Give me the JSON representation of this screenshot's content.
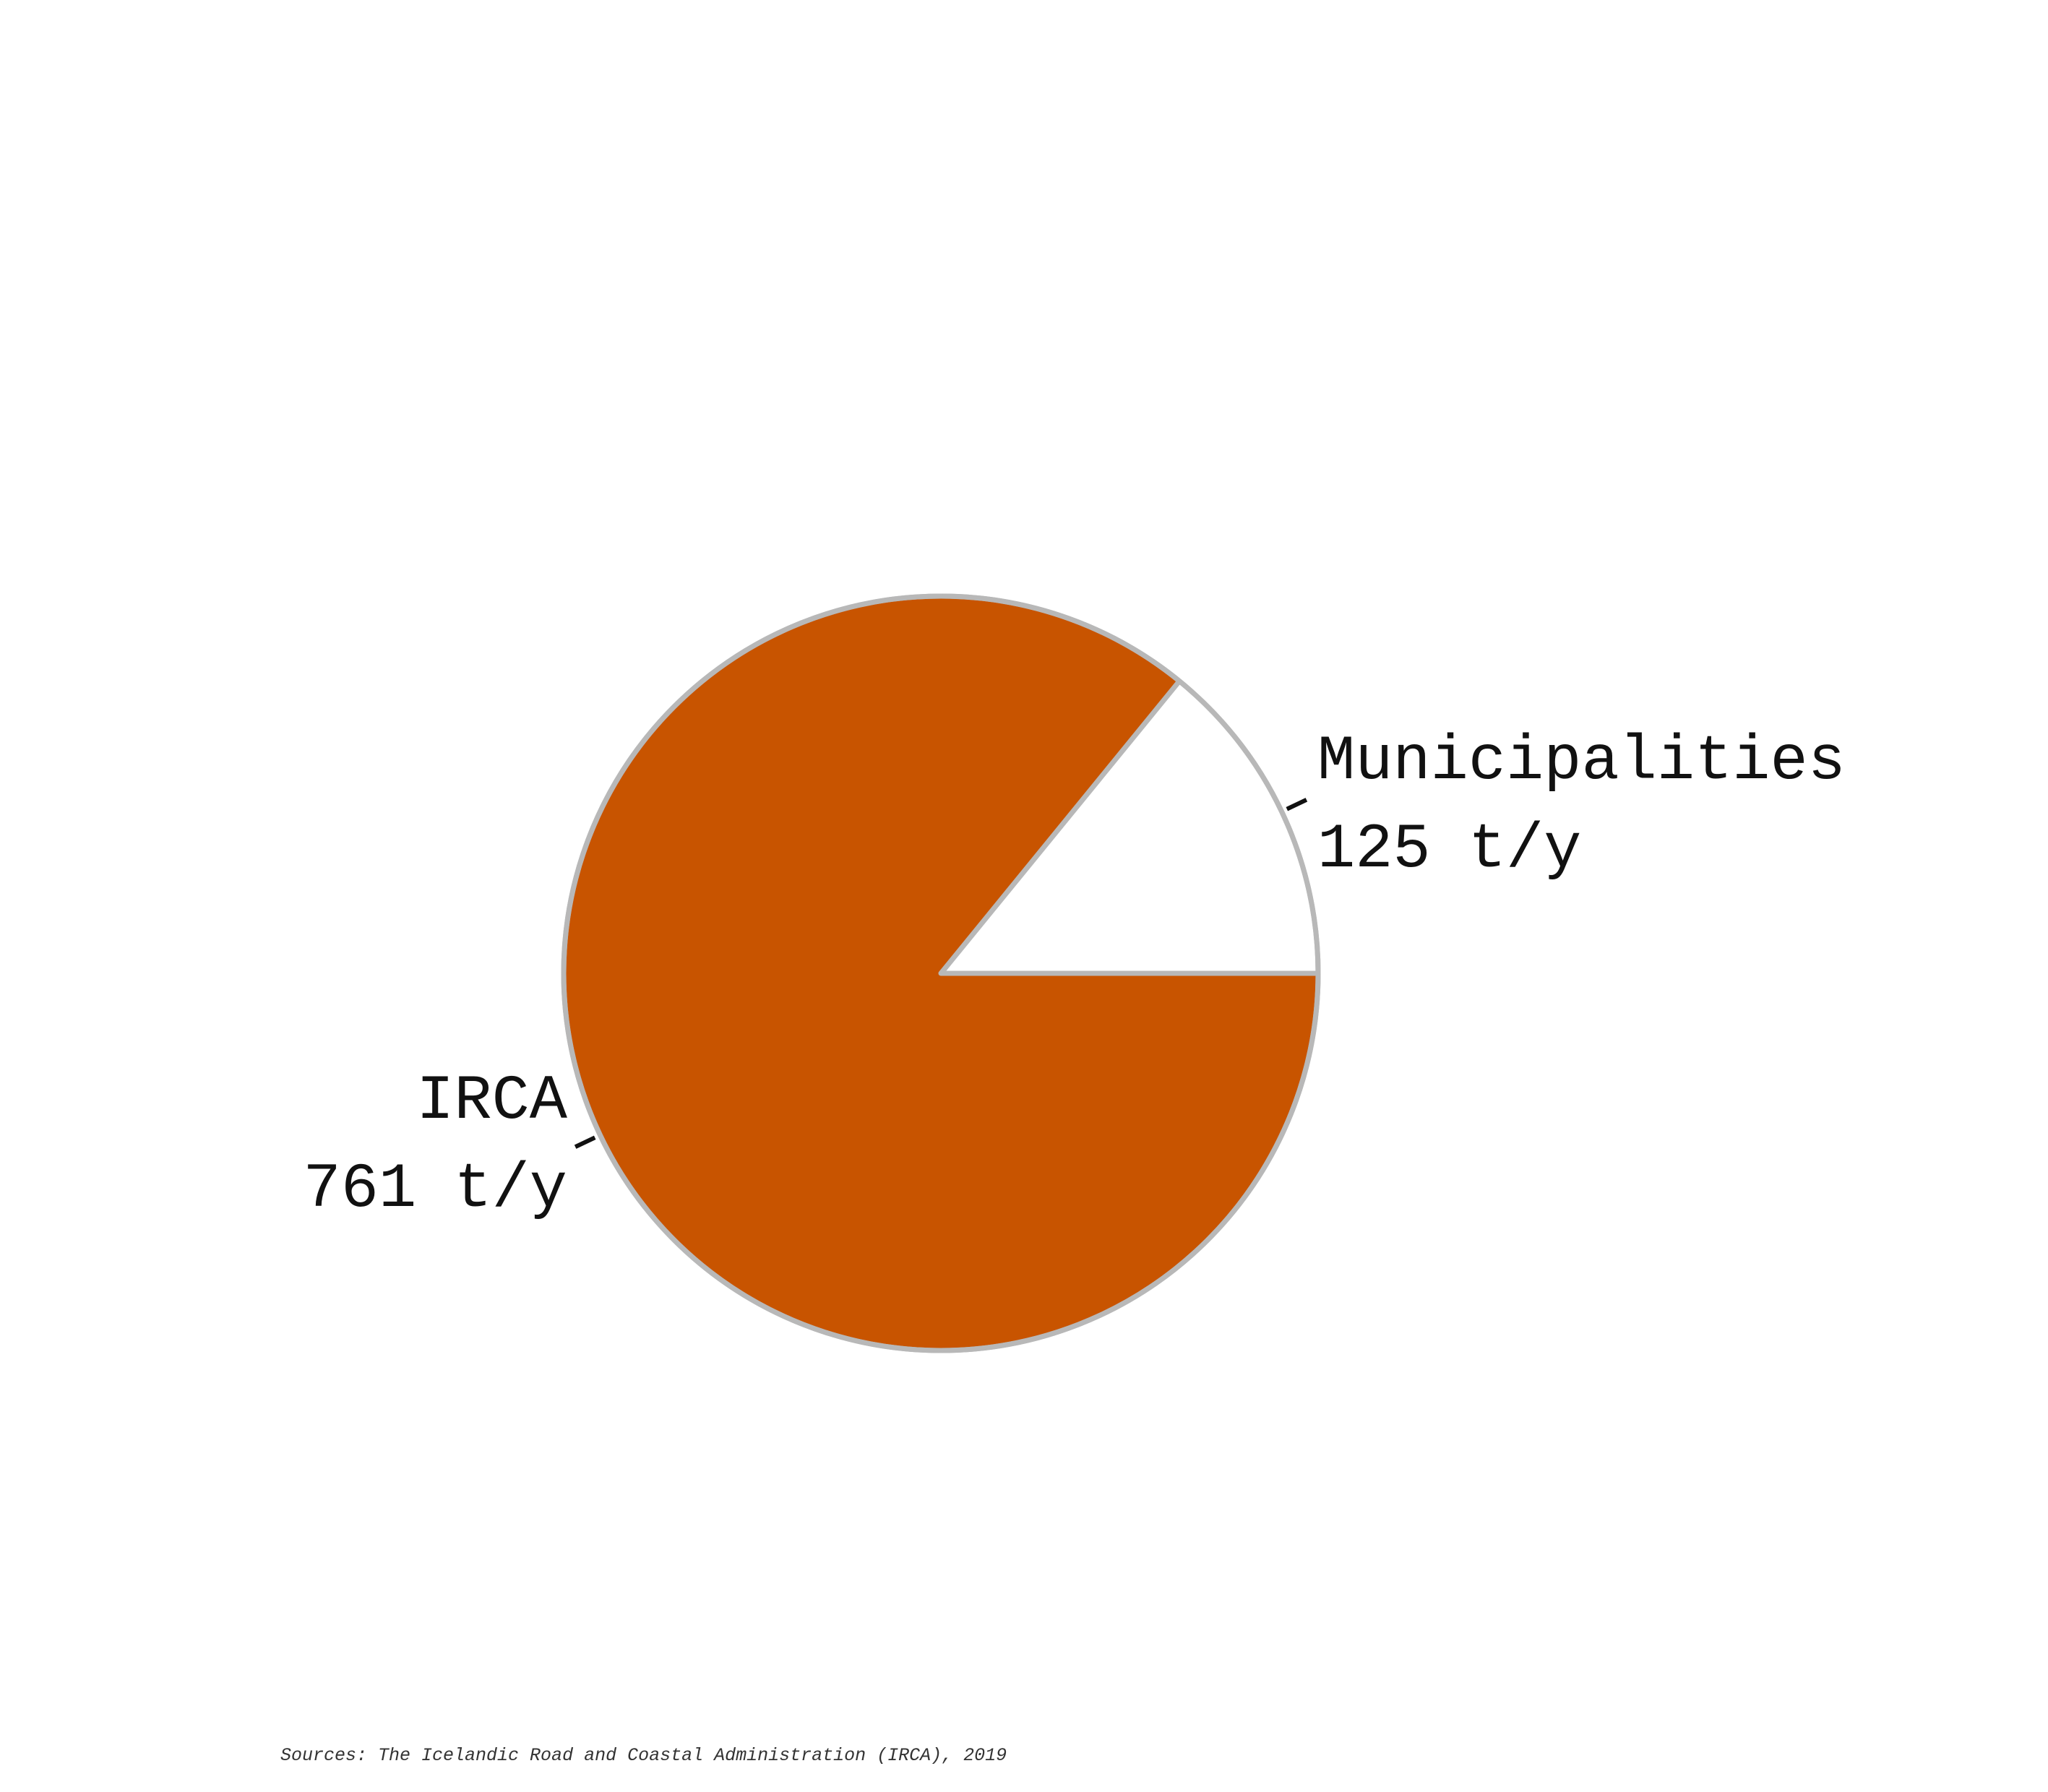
{
  "chart_data": {
    "type": "pie",
    "categories": [
      "IRCA",
      "Municipalities"
    ],
    "values": [
      761,
      125
    ],
    "value_labels": [
      "761 t/y",
      "125 t/y"
    ],
    "colors": [
      "#c85400",
      "#ffffff"
    ],
    "edge_color": "#b8b8b8",
    "leader_color": "#111111"
  },
  "source": "Sources: The Icelandic Road and Coastal Administration (IRCA), 2019"
}
